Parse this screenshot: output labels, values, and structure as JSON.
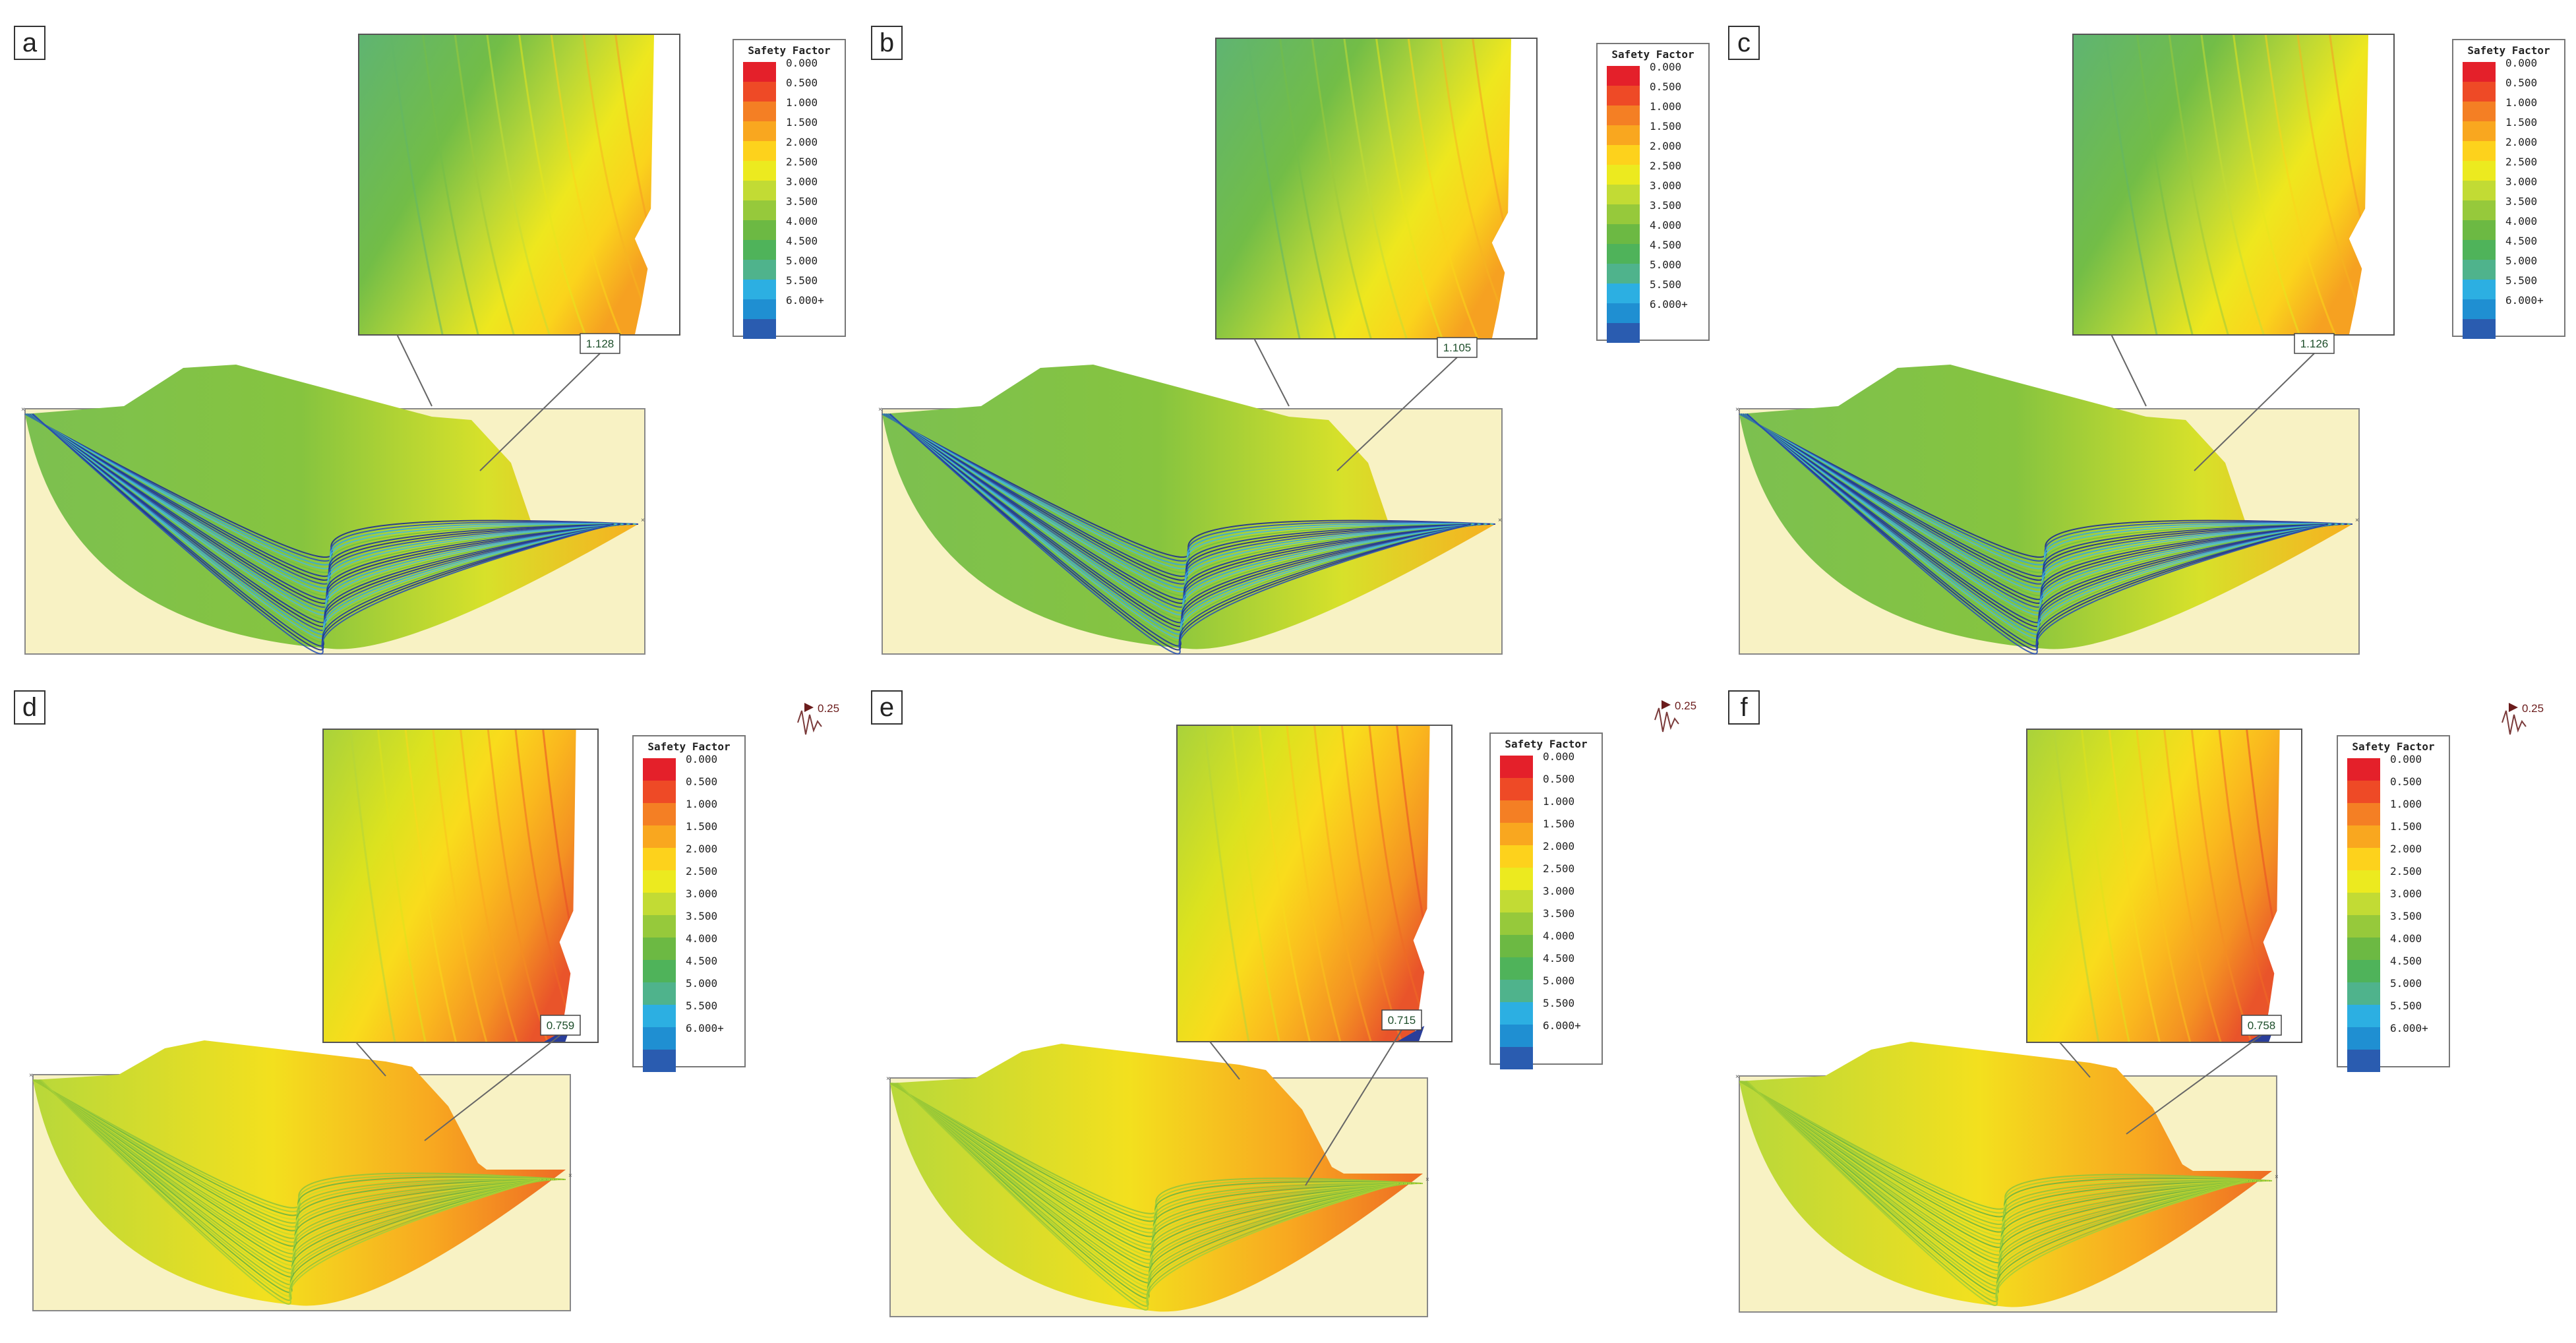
{
  "legend": {
    "title": "Safety Factor",
    "entries": [
      {
        "label": "0.000",
        "color": "#e4202a"
      },
      {
        "label": "0.500",
        "color": "#ee4a26"
      },
      {
        "label": "1.000",
        "color": "#f47f24"
      },
      {
        "label": "1.500",
        "color": "#f9a71f"
      },
      {
        "label": "2.000",
        "color": "#fdd21c"
      },
      {
        "label": "2.500",
        "color": "#ecea1f"
      },
      {
        "label": "3.000",
        "color": "#c2db34"
      },
      {
        "label": "3.500",
        "color": "#96c93b"
      },
      {
        "label": "4.000",
        "color": "#6cb943"
      },
      {
        "label": "4.500",
        "color": "#4fb35a"
      },
      {
        "label": "5.000",
        "color": "#4fb38c"
      },
      {
        "label": "5.500",
        "color": "#2cafe2"
      },
      {
        "label": "6.000+",
        "color": "#1f8fd2"
      },
      {
        "label": "",
        "color": "#2a5cb0"
      }
    ]
  },
  "panels": [
    {
      "letter": "a",
      "min_sf": "1.128",
      "seismic": false,
      "seismic_coeff": ""
    },
    {
      "letter": "b",
      "min_sf": "1.105",
      "seismic": false,
      "seismic_coeff": ""
    },
    {
      "letter": "c",
      "min_sf": "1.126",
      "seismic": false,
      "seismic_coeff": ""
    },
    {
      "letter": "d",
      "min_sf": "0.759",
      "seismic": true,
      "seismic_coeff": "0.25"
    },
    {
      "letter": "e",
      "min_sf": "0.715",
      "seismic": true,
      "seismic_coeff": "0.25"
    },
    {
      "letter": "f",
      "min_sf": "0.758",
      "seismic": true,
      "seismic_coeff": "0.25"
    }
  ],
  "colors": {
    "ground": "#f8f2c4",
    "static_zoom": [
      "#62b766",
      "#74be48",
      "#9ccb3c",
      "#c4dc34",
      "#e6e61f",
      "#fad51c",
      "#f6b520",
      "#f59a22"
    ],
    "seismic_zoom": [
      "#b4d63a",
      "#dee21e",
      "#f8d81d",
      "#fac21d",
      "#f9a61f",
      "#f48c23",
      "#ee6a25",
      "#e84a27"
    ]
  }
}
